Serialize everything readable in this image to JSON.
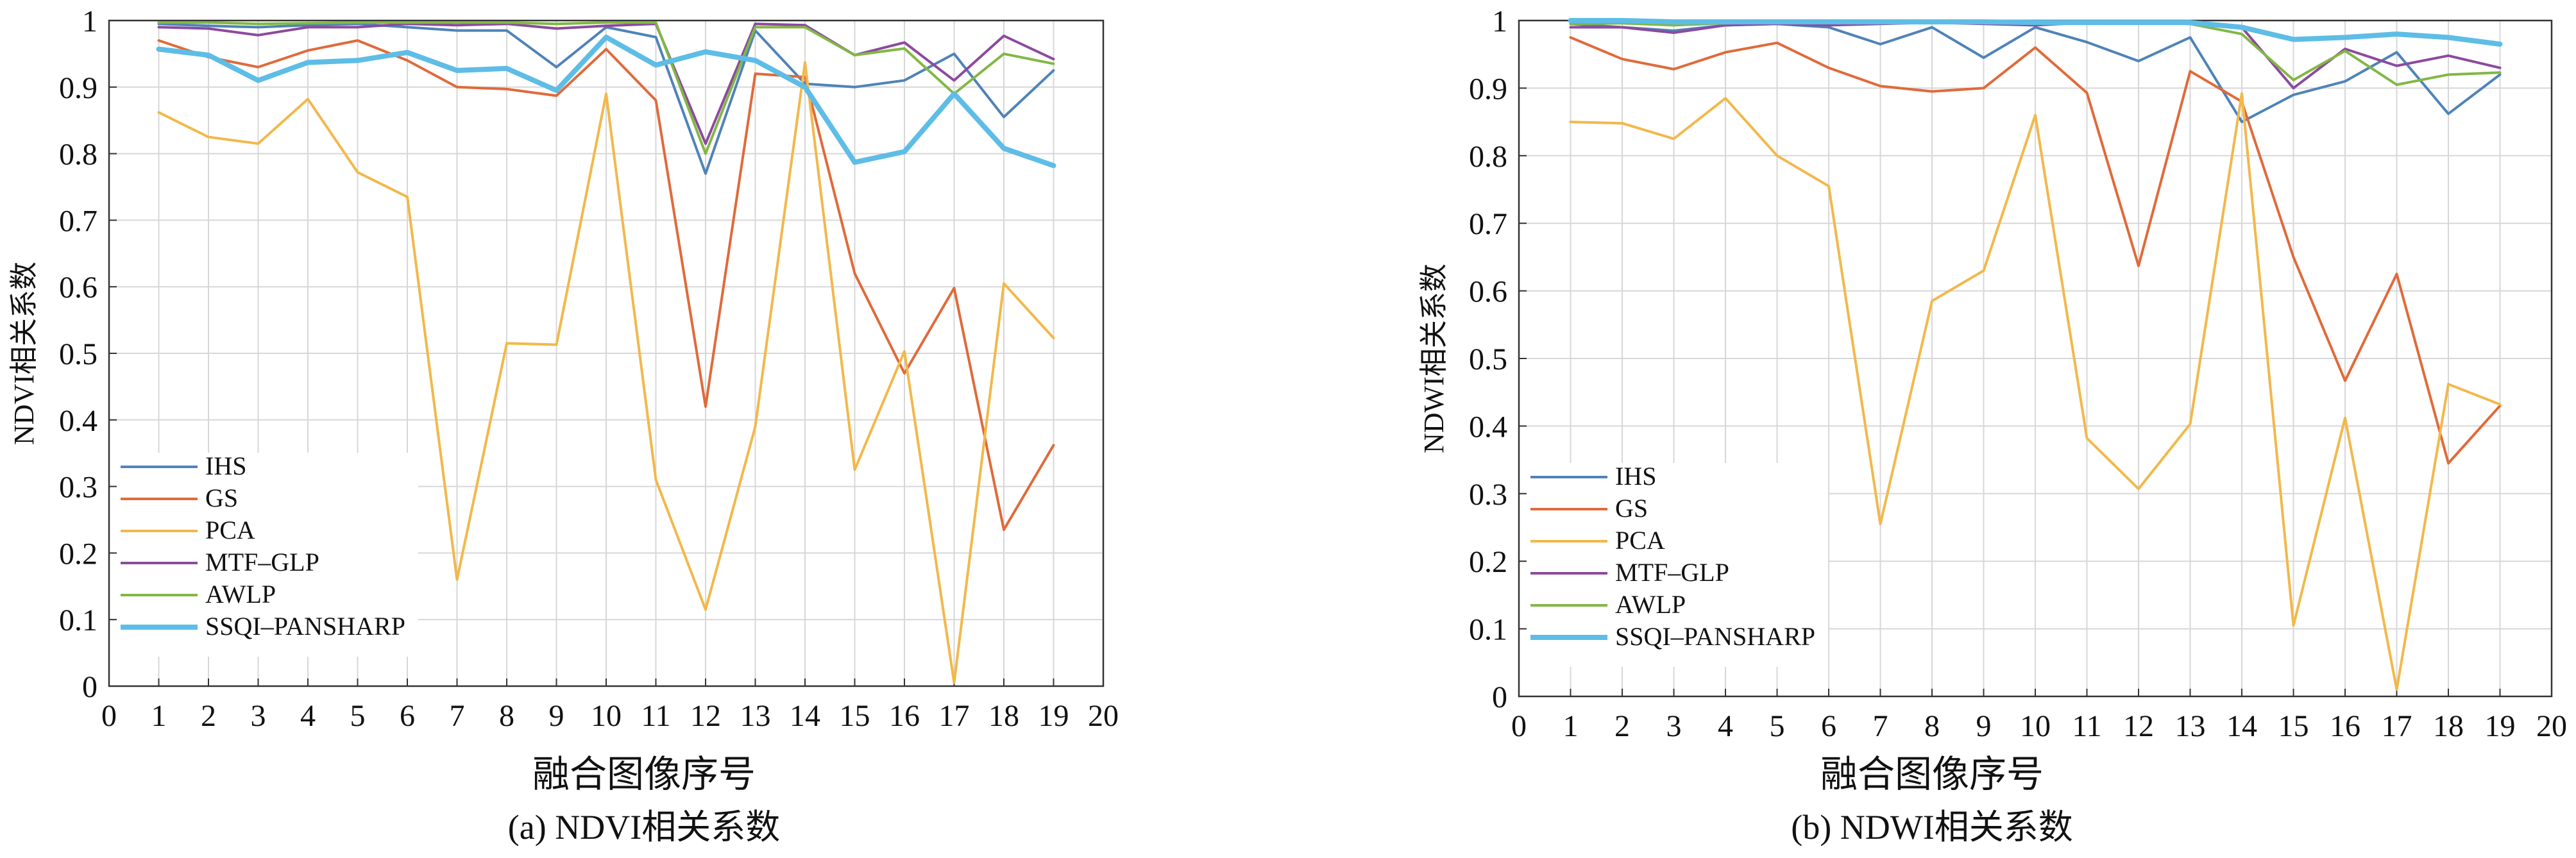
{
  "colors": {
    "IHS": "#4f83b8",
    "GS": "#e06a3a",
    "PCA": "#f2b84b",
    "MTF–GLP": "#8c4a9e",
    "AWLP": "#82b744",
    "SSQI–PANSHARP": "#5ebde6",
    "grid": "#d7d7d7"
  },
  "chart_data": [
    {
      "type": "line",
      "caption": "(a) NDVI相关系数",
      "xlabel": "融合图像序号",
      "ylabel": "NDVI相关系数",
      "xlim": [
        0,
        20
      ],
      "ylim": [
        0,
        1
      ],
      "xticks": [
        "0",
        "1",
        "2",
        "3",
        "4",
        "5",
        "6",
        "7",
        "8",
        "9",
        "10",
        "11",
        "12",
        "13",
        "14",
        "15",
        "16",
        "17",
        "18",
        "19",
        "20"
      ],
      "yticks": [
        "0",
        "0.1",
        "0.2",
        "0.3",
        "0.4",
        "0.5",
        "0.6",
        "0.7",
        "0.8",
        "0.9",
        "1"
      ],
      "grid": true,
      "legend": "bottom-left",
      "x": [
        1,
        2,
        3,
        4,
        5,
        6,
        7,
        8,
        9,
        10,
        11,
        12,
        13,
        14,
        15,
        16,
        17,
        18,
        19
      ],
      "series": [
        {
          "name": "IHS",
          "values": [
            0.995,
            0.992,
            0.99,
            0.993,
            0.995,
            0.99,
            0.985,
            0.985,
            0.93,
            0.99,
            0.975,
            0.77,
            0.985,
            0.905,
            0.9,
            0.91,
            0.95,
            0.855,
            0.925
          ]
        },
        {
          "name": "GS",
          "values": [
            0.97,
            0.945,
            0.93,
            0.955,
            0.97,
            0.94,
            0.9,
            0.897,
            0.887,
            0.957,
            0.88,
            0.42,
            0.92,
            0.915,
            0.62,
            0.47,
            0.598,
            0.235,
            0.362
          ]
        },
        {
          "name": "PCA",
          "values": [
            0.862,
            0.825,
            0.815,
            0.882,
            0.772,
            0.735,
            0.16,
            0.515,
            0.513,
            0.89,
            0.31,
            0.115,
            0.39,
            0.937,
            0.325,
            0.503,
            0.005,
            0.605,
            0.523
          ]
        },
        {
          "name": "MTF–GLP",
          "values": [
            0.99,
            0.988,
            0.978,
            0.99,
            0.99,
            0.995,
            0.993,
            0.995,
            0.988,
            0.992,
            0.995,
            0.815,
            0.995,
            0.993,
            0.948,
            0.967,
            0.91,
            0.977,
            0.942
          ]
        },
        {
          "name": "AWLP",
          "values": [
            0.997,
            0.997,
            0.995,
            0.996,
            0.997,
            0.997,
            0.997,
            0.997,
            0.995,
            0.997,
            0.997,
            0.8,
            0.99,
            0.99,
            0.948,
            0.958,
            0.89,
            0.95,
            0.935
          ]
        },
        {
          "name": "SSQI–PANSHARP",
          "values": [
            0.957,
            0.948,
            0.91,
            0.937,
            0.94,
            0.952,
            0.925,
            0.928,
            0.895,
            0.975,
            0.933,
            0.953,
            0.94,
            0.9,
            0.787,
            0.803,
            0.89,
            0.808,
            0.782
          ]
        }
      ]
    },
    {
      "type": "line",
      "caption": "(b) NDWI相关系数",
      "xlabel": "融合图像序号",
      "ylabel": "NDWI相关系数",
      "xlim": [
        0,
        20
      ],
      "ylim": [
        0,
        1
      ],
      "xticks": [
        "0",
        "1",
        "2",
        "3",
        "4",
        "5",
        "6",
        "7",
        "8",
        "9",
        "10",
        "11",
        "12",
        "13",
        "14",
        "15",
        "16",
        "17",
        "18",
        "19",
        "20"
      ],
      "yticks": [
        "0",
        "0.1",
        "0.2",
        "0.3",
        "0.4",
        "0.5",
        "0.6",
        "0.7",
        "0.8",
        "0.9",
        "1"
      ],
      "grid": true,
      "legend": "bottom-left",
      "x": [
        1,
        2,
        3,
        4,
        5,
        6,
        7,
        8,
        9,
        10,
        11,
        12,
        13,
        14,
        15,
        16,
        17,
        18,
        19
      ],
      "series": [
        {
          "name": "IHS",
          "values": [
            0.995,
            0.99,
            0.985,
            0.993,
            0.995,
            0.99,
            0.965,
            0.99,
            0.945,
            0.99,
            0.968,
            0.94,
            0.975,
            0.85,
            0.89,
            0.91,
            0.953,
            0.862,
            0.92
          ]
        },
        {
          "name": "GS",
          "values": [
            0.975,
            0.943,
            0.928,
            0.953,
            0.967,
            0.93,
            0.903,
            0.895,
            0.9,
            0.96,
            0.893,
            0.637,
            0.925,
            0.88,
            0.65,
            0.467,
            0.625,
            0.345,
            0.43
          ]
        },
        {
          "name": "PCA",
          "values": [
            0.85,
            0.848,
            0.825,
            0.885,
            0.8,
            0.755,
            0.255,
            0.585,
            0.63,
            0.86,
            0.382,
            0.307,
            0.403,
            0.892,
            0.105,
            0.412,
            0.01,
            0.462,
            0.432
          ]
        },
        {
          "name": "MTF–GLP",
          "values": [
            0.99,
            0.99,
            0.982,
            0.993,
            0.995,
            0.993,
            0.995,
            0.997,
            0.995,
            0.993,
            0.997,
            0.997,
            0.995,
            0.99,
            0.9,
            0.958,
            0.933,
            0.948,
            0.93
          ]
        },
        {
          "name": "AWLP",
          "values": [
            0.995,
            0.996,
            0.993,
            0.996,
            0.997,
            0.997,
            0.997,
            0.997,
            0.997,
            0.997,
            0.997,
            0.997,
            0.995,
            0.98,
            0.912,
            0.955,
            0.905,
            0.92,
            0.923
          ]
        },
        {
          "name": "SSQI–PANSHARP",
          "values": [
            1.0,
            1.0,
            0.998,
            0.998,
            0.998,
            0.998,
            0.998,
            0.998,
            0.998,
            0.997,
            0.997,
            0.997,
            0.997,
            0.99,
            0.972,
            0.975,
            0.98,
            0.975,
            0.965
          ]
        }
      ]
    }
  ]
}
